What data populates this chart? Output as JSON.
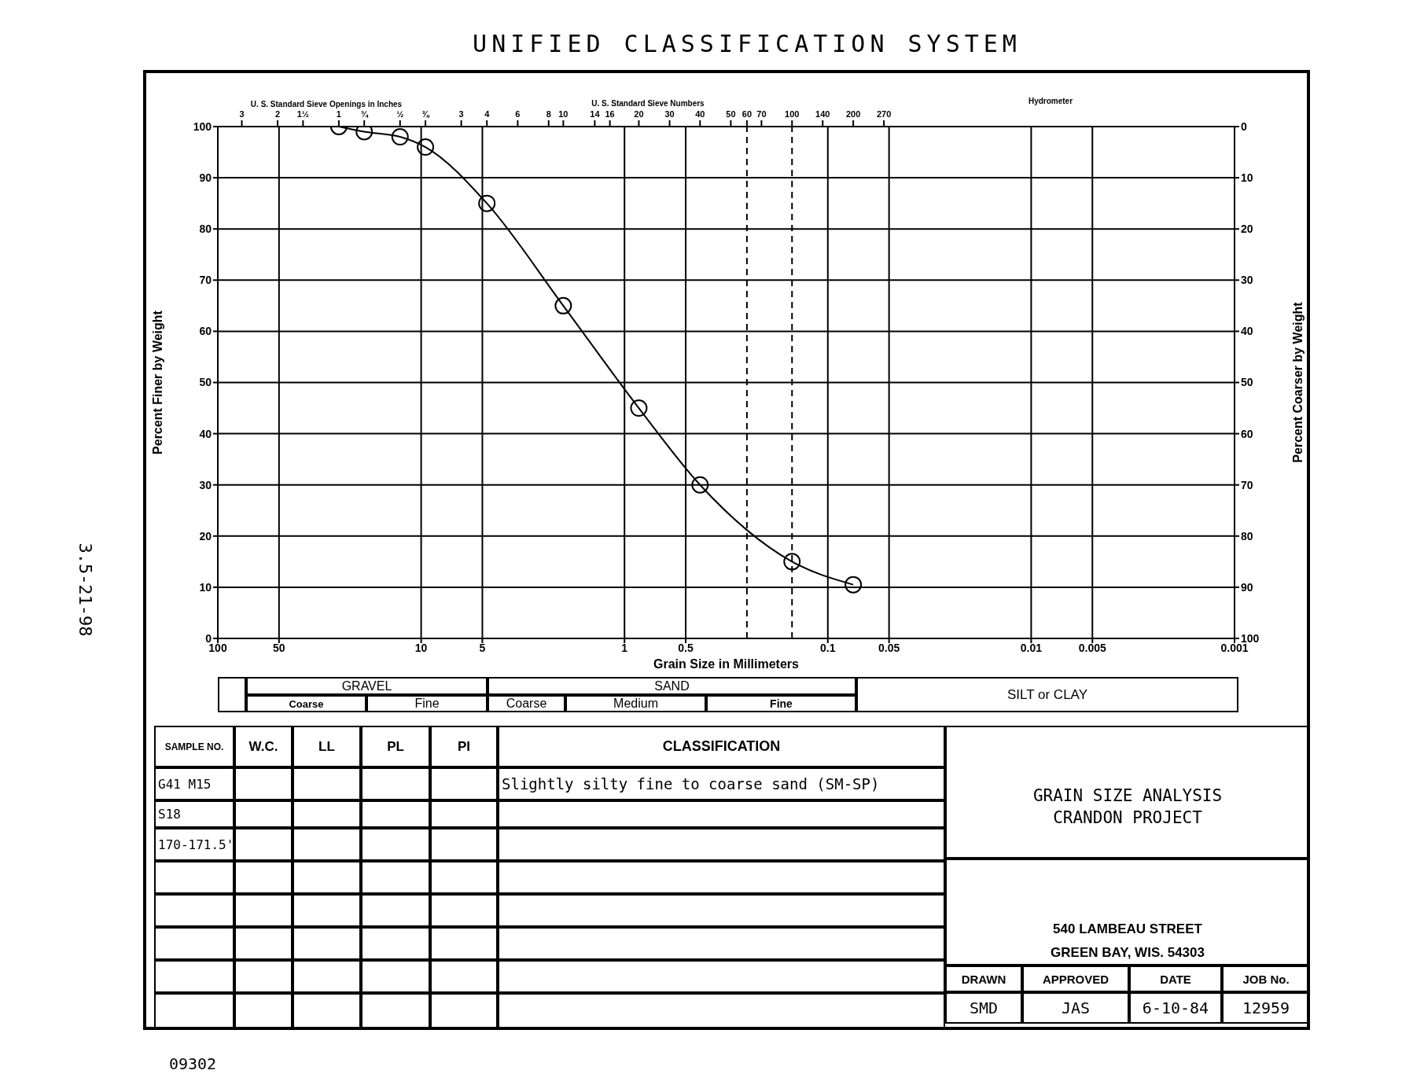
{
  "chart_data": {
    "type": "line",
    "title": "UNIFIED CLASSIFICATION SYSTEM",
    "xlabel": "Grain Size in Millimeters",
    "ylabel": "Percent Finer by Weight",
    "y2label": "Percent Coarser by Weight",
    "x": [
      25.4,
      19.05,
      12.7,
      9.525,
      4.75,
      2.0,
      0.85,
      0.425,
      0.15,
      0.075
    ],
    "series": [
      {
        "color": "#000000",
        "values": [
          100,
          99,
          98,
          96,
          85,
          65,
          45,
          30,
          15,
          10.5
        ]
      }
    ],
    "log": "x",
    "xlim": [
      100,
      0.001
    ],
    "xticks": [
      100,
      50,
      10,
      5,
      1,
      0.5,
      0.1,
      0.05,
      0.01,
      0.005,
      0.001
    ],
    "ylim": [
      0,
      100
    ],
    "yticks": [
      0,
      10,
      20,
      30,
      40,
      50,
      60,
      70,
      80,
      90,
      100
    ],
    "y2lim": [
      100,
      0
    ],
    "y2ticks": [
      0,
      10,
      20,
      30,
      40,
      50,
      60,
      70,
      80,
      90,
      100
    ],
    "grid": true,
    "marker": "circle",
    "line_style": "solid",
    "ref_lines": [
      {
        "axis": "x",
        "value": 0.25,
        "color": "#000000",
        "line_style": "dashed"
      },
      {
        "axis": "x",
        "value": 0.15,
        "color": "#000000",
        "line_style": "dashed"
      }
    ],
    "annotations": [
      "U. S. Standard Sieve Openings in Inches",
      "U. S. Standard Sieve Numbers",
      "Hydrometer",
      "GRAVEL",
      "Coarse",
      "Fine",
      "SAND",
      "Coarse",
      "Medium",
      "Fine",
      "SILT or CLAY",
      "SAMPLE NO.",
      "W.C.",
      "LL",
      "PL",
      "PI",
      "CLASSIFICATION",
      "G41 M15",
      "S18",
      "170-171.5'",
      "Slightly silty fine to coarse sand (SM-SP)",
      "GRAIN SIZE ANALYSIS",
      "CRANDON PROJECT",
      "540 LAMBEAU STREET",
      "GREEN BAY, WIS. 54303",
      "DRAWN",
      "APPROVED",
      "DATE",
      "JOB No.",
      "SMD",
      "JAS",
      "6-10-84",
      "12959",
      "3.5-21-98",
      "09302",
      "3",
      "2",
      "1½",
      "1",
      "¾",
      "½",
      "⅜",
      "3",
      "4",
      "6",
      "8",
      "10",
      "14",
      "16",
      "20",
      "30",
      "40",
      "50",
      "60",
      "70",
      "100",
      "140",
      "200",
      "270"
    ]
  }
}
